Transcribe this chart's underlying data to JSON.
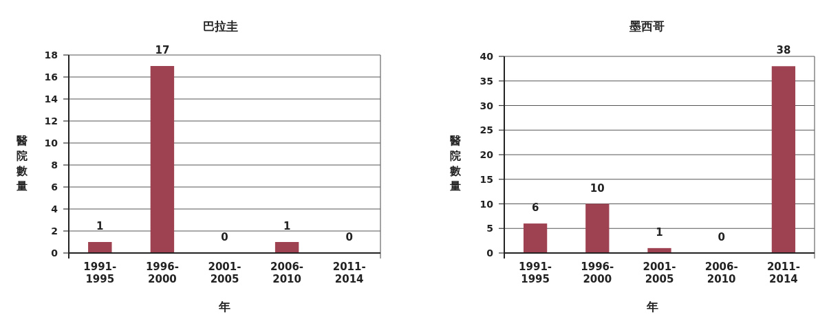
{
  "chart_data": [
    {
      "type": "bar",
      "title": "巴拉圭",
      "xlabel": "年",
      "ylabel": "醫院數量",
      "categories": [
        "1991-1995",
        "1996-2000",
        "2001-2005",
        "2006-2010",
        "2011-2014"
      ],
      "values": [
        1,
        17,
        0,
        1,
        0
      ],
      "color": "#9e4150",
      "ylim": [
        0,
        18
      ],
      "yticks": [
        0,
        2,
        4,
        6,
        8,
        10,
        12,
        14,
        16,
        18
      ],
      "grid": "y",
      "data_labels": true
    },
    {
      "type": "bar",
      "title": "墨西哥",
      "xlabel": "年",
      "ylabel": "醫院數量",
      "categories": [
        "1991-1995",
        "1996-2000",
        "2001-2005",
        "2006-2010",
        "2011-2014"
      ],
      "values": [
        6,
        10,
        1,
        0,
        38
      ],
      "color": "#9e4150",
      "ylim": [
        0,
        40
      ],
      "yticks": [
        0,
        5,
        10,
        15,
        20,
        25,
        30,
        35,
        40
      ],
      "grid": "y",
      "data_labels": true
    }
  ]
}
